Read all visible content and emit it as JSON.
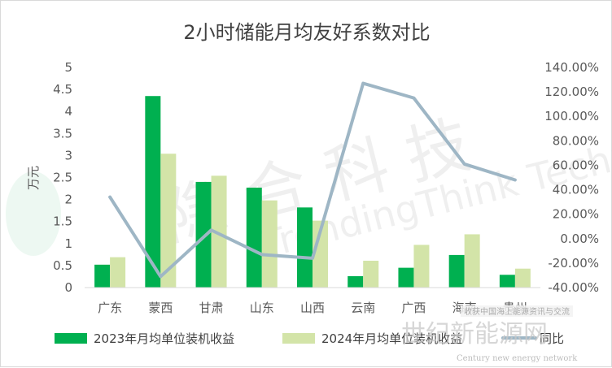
{
  "chart_data": {
    "type": "bar",
    "title": "2小时储能月均友好系数对比",
    "ylabel": "万元",
    "categories": [
      "广东",
      "蒙西",
      "甘肃",
      "山东",
      "山西",
      "云南",
      "广西",
      "海南",
      "贵州"
    ],
    "ylim": [
      0,
      5
    ],
    "yticks": [
      "5",
      "4.5",
      "4",
      "3.5",
      "3",
      "2.5",
      "2",
      "1.5",
      "1",
      "0.5",
      "0"
    ],
    "y2lim": [
      -0.4,
      1.4
    ],
    "y2ticks": [
      "140.00%",
      "120.00%",
      "100.00%",
      "80.00%",
      "60.00%",
      "40.00%",
      "20.00%",
      "0.00%",
      "-20.00%",
      "-40.00%"
    ],
    "series": [
      {
        "name": "2023年月均单位装机收益",
        "type": "bar",
        "axis": "left",
        "color": "#00b050",
        "values": [
          0.52,
          4.35,
          2.4,
          2.27,
          1.82,
          0.26,
          0.45,
          0.74,
          0.29
        ]
      },
      {
        "name": "2024年月均单位装机收益",
        "type": "bar",
        "axis": "left",
        "color": "#d3e4a8",
        "values": [
          0.69,
          3.04,
          2.54,
          1.98,
          1.52,
          0.61,
          0.97,
          1.21,
          0.43
        ]
      },
      {
        "name": "同比",
        "type": "line",
        "axis": "right",
        "color": "#9eb6c5",
        "values": [
          0.34,
          -0.31,
          0.07,
          -0.13,
          -0.16,
          1.27,
          1.15,
          0.61,
          0.48
        ]
      }
    ],
    "grid": false,
    "legend_position": "bottom"
  },
  "watermark": {
    "text": "世纪新能源网",
    "subtext": "Century new energy network",
    "tag": "收获中国海上能源资讯与交流"
  },
  "brand_watermark": {
    "cn": "隐 合 科 技",
    "en": "TrendingThink Technology"
  }
}
